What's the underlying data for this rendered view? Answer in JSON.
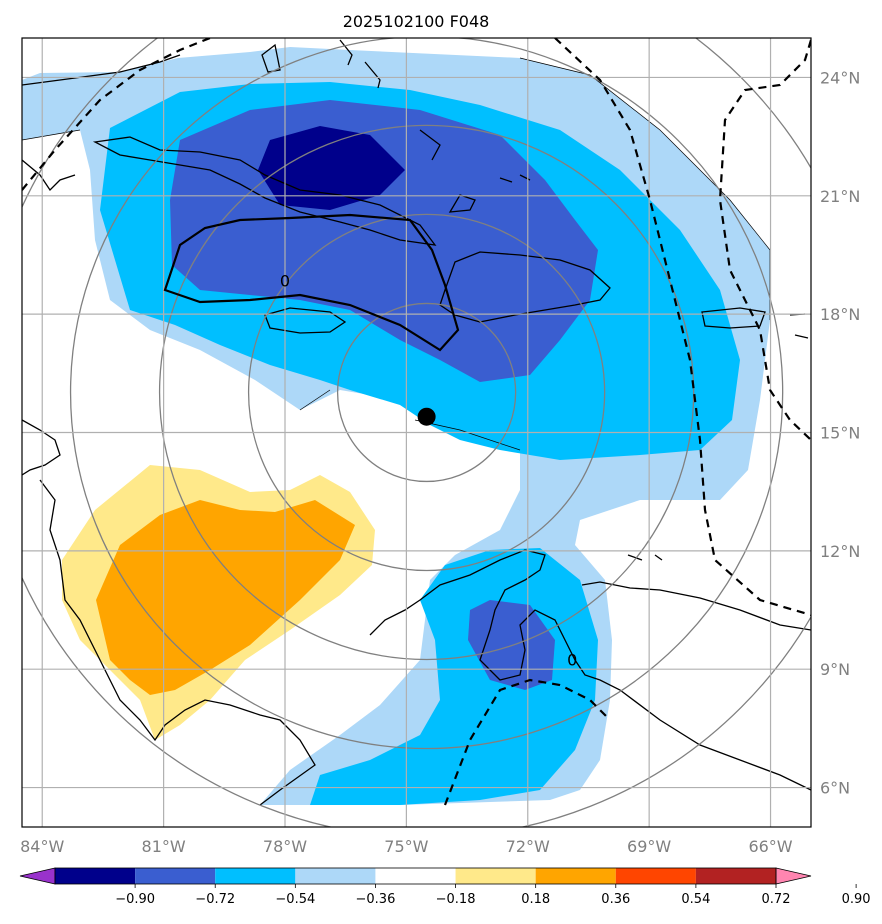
{
  "title": "2025102100 F048",
  "map": {
    "lon_range": [
      -84.5,
      -65.0
    ],
    "lat_range": [
      5.0,
      25.0
    ],
    "lon_ticks": [
      {
        "value": -84,
        "label": "84°W"
      },
      {
        "value": -81,
        "label": "81°W"
      },
      {
        "value": -78,
        "label": "78°W"
      },
      {
        "value": -75,
        "label": "75°W"
      },
      {
        "value": -72,
        "label": "72°W"
      },
      {
        "value": -69,
        "label": "69°W"
      },
      {
        "value": -66,
        "label": "66°W"
      }
    ],
    "lat_ticks": [
      {
        "value": 24,
        "label": "24°N"
      },
      {
        "value": 21,
        "label": "21°N"
      },
      {
        "value": 18,
        "label": "18°N"
      },
      {
        "value": 15,
        "label": "15°N"
      },
      {
        "value": 12,
        "label": "12°N"
      },
      {
        "value": 9,
        "label": "9°N"
      },
      {
        "value": 6,
        "label": "6°N"
      }
    ],
    "center_marker": {
      "lon": -74.5,
      "lat": 15.4
    },
    "range_rings_deg": [
      2.5,
      5,
      7.5,
      10,
      12.5
    ],
    "zero_contour_labels": [
      {
        "text": "0",
        "lon": -78.0,
        "lat": 18.7
      },
      {
        "text": "0",
        "lon": -70.9,
        "lat": 9.1
      }
    ]
  },
  "colorbar": {
    "colors": [
      "#9932cc",
      "#00008b",
      "#3a5ed0",
      "#00bfff",
      "#add8f8",
      "#ffffff",
      "#ffe98a",
      "#ffa500",
      "#ff4500",
      "#b22222",
      "#ff85b0"
    ],
    "levels": [
      "−0.90",
      "−0.72",
      "−0.54",
      "−0.36",
      "−0.18",
      "0.18",
      "0.36",
      "0.54",
      "0.72",
      "0.90"
    ]
  },
  "field_layers": [
    {
      "level": "-0.18",
      "color": "#add8f8"
    },
    {
      "level": "-0.36",
      "color": "#00bfff"
    },
    {
      "level": "-0.54",
      "color": "#3a5ed0"
    },
    {
      "level": "-0.72",
      "color": "#00008b"
    },
    {
      "level": "0.18",
      "color": "#ffe98a"
    },
    {
      "level": "0.36",
      "color": "#ffa500"
    }
  ]
}
